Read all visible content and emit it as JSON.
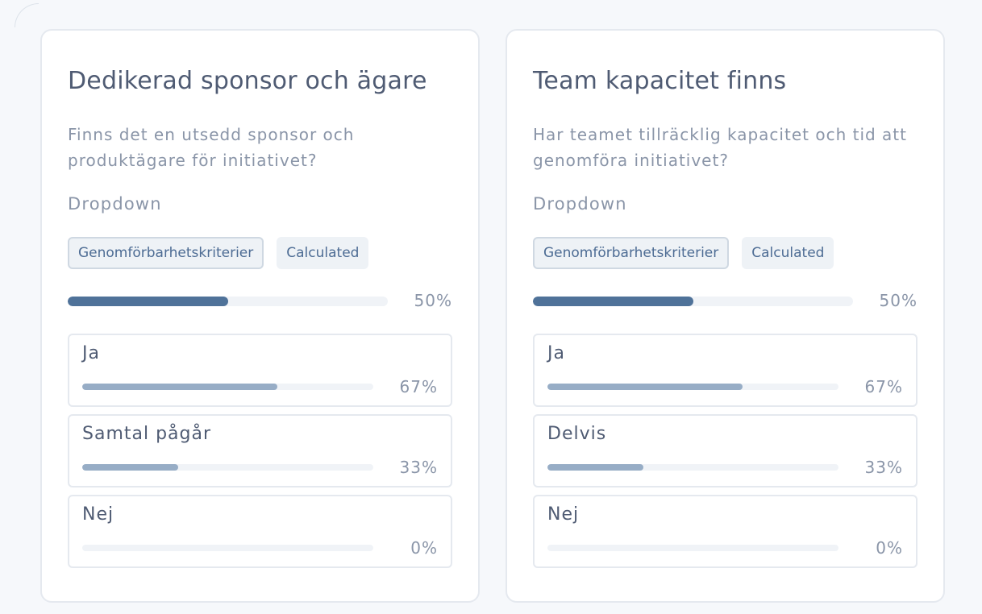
{
  "cards": [
    {
      "title": "Dedikerad sponsor och ägare",
      "description": "Finns det en utsedd sponsor och produktägare för initiativet?",
      "type_label": "Dropdown",
      "tags": [
        "Genomförbarhetskriterier",
        "Calculated"
      ],
      "overall_percent": 50,
      "overall_percent_label": "50%",
      "options": [
        {
          "label": "Ja",
          "percent": 67,
          "percent_label": "67%"
        },
        {
          "label": "Samtal pågår",
          "percent": 33,
          "percent_label": "33%"
        },
        {
          "label": "Nej",
          "percent": 0,
          "percent_label": "0%"
        }
      ]
    },
    {
      "title": "Team kapacitet finns",
      "description": "Har teamet tillräcklig kapacitet och tid att genomföra initiativet?",
      "type_label": "Dropdown",
      "tags": [
        "Genomförbarhetskriterier",
        "Calculated"
      ],
      "overall_percent": 50,
      "overall_percent_label": "50%",
      "options": [
        {
          "label": "Ja",
          "percent": 67,
          "percent_label": "67%"
        },
        {
          "label": "Delvis",
          "percent": 33,
          "percent_label": "33%"
        },
        {
          "label": "Nej",
          "percent": 0,
          "percent_label": "0%"
        }
      ]
    }
  ],
  "colors": {
    "primary_bar": "#4f7299",
    "option_bar": "#97adc6",
    "track": "#f0f3f7",
    "tag_text": "#4d6c94"
  }
}
